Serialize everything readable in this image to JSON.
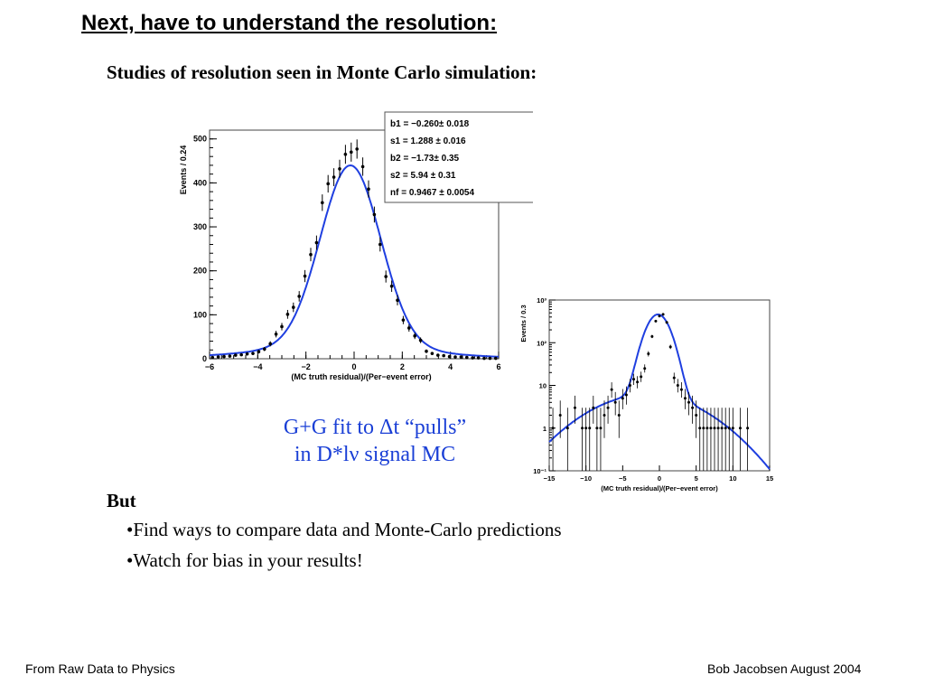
{
  "slide": {
    "title": "Next, have to understand the resolution:",
    "subtitle": "Studies of resolution seen in Monte Carlo simulation:",
    "caption_line1": "G+G fit to Δt “pulls”",
    "caption_line2": "in D*lν signal MC",
    "but_label": "But",
    "bullets": [
      "Find ways to compare data and Monte-Carlo predictions",
      "Watch for bias in your results!"
    ],
    "footer_left": "From Raw Data to Physics",
    "footer_right": "Bob Jacobsen August 2004"
  },
  "chart_data": [
    {
      "type": "scatter",
      "xlabel": "(MC truth residual)/(Per−event error)",
      "ylabel": "Events / 0.24",
      "xlim": [
        -6,
        6
      ],
      "ylim": [
        0,
        520
      ],
      "xticks": [
        -6,
        -4,
        -2,
        0,
        2,
        4,
        6
      ],
      "yticks": [
        0,
        100,
        200,
        300,
        400,
        500
      ],
      "fit_params": [
        "b1 = −0.260± 0.018",
        "s1 = 1.288 ± 0.016",
        "b2 = −1.73± 0.35",
        "s2 = 5.94 ± 0.31",
        "nf = 0.9467 ± 0.0054"
      ],
      "fit_curve_color": "#1f3fe0",
      "x": [
        -5.88,
        -5.64,
        -5.4,
        -5.16,
        -4.92,
        -4.68,
        -4.44,
        -4.2,
        -3.96,
        -3.72,
        -3.48,
        -3.24,
        -3.0,
        -2.76,
        -2.52,
        -2.28,
        -2.04,
        -1.8,
        -1.56,
        -1.32,
        -1.08,
        -0.84,
        -0.6,
        -0.36,
        -0.12,
        0.12,
        0.36,
        0.6,
        0.84,
        1.08,
        1.32,
        1.56,
        1.8,
        2.04,
        2.28,
        2.52,
        2.76,
        3.0,
        3.24,
        3.48,
        3.72,
        3.96,
        4.2,
        4.44,
        4.68,
        4.92,
        5.16,
        5.4,
        5.64,
        5.88
      ],
      "y": [
        3,
        4,
        5,
        6,
        8,
        9,
        11,
        12,
        16,
        22,
        34,
        56,
        73,
        101,
        117,
        142,
        188,
        237,
        264,
        355,
        398,
        413,
        432,
        465,
        470,
        477,
        437,
        386,
        328,
        260,
        187,
        165,
        133,
        88,
        70,
        52,
        42,
        17,
        12,
        8,
        7,
        5,
        4,
        4,
        3,
        2,
        2,
        1,
        1,
        1
      ]
    },
    {
      "type": "scatter",
      "xlabel": "(MC truth residual)/(Per−event error)",
      "ylabel": "Events / 0.3",
      "xlim": [
        -15,
        15
      ],
      "ylim": [
        0.1,
        1000
      ],
      "yscale": "log",
      "xticks": [
        -15,
        -10,
        -5,
        0,
        5,
        10,
        15
      ],
      "yticks": [
        0.1,
        1,
        10,
        100,
        1000
      ],
      "ytick_labels": [
        "10⁻¹",
        "1",
        "10",
        "10²",
        "10³"
      ],
      "fit_curve_color": "#1f3fe0",
      "x": [
        -14.5,
        -13.5,
        -12.5,
        -11.5,
        -10.5,
        -10.0,
        -9.5,
        -9.0,
        -8.5,
        -8.0,
        -7.5,
        -7.0,
        -6.5,
        -6.0,
        -5.5,
        -5.0,
        -4.5,
        -4.0,
        -3.5,
        -3.0,
        -2.5,
        -2.0,
        -1.5,
        -1.0,
        -0.5,
        0.0,
        0.5,
        1.0,
        1.5,
        2.0,
        2.5,
        3.0,
        3.5,
        4.0,
        4.5,
        5.0,
        5.5,
        6.0,
        6.5,
        7.0,
        7.5,
        8.0,
        8.5,
        9.0,
        9.5,
        10.0,
        11.0,
        12.0
      ],
      "y": [
        1,
        2,
        1,
        3,
        1,
        1,
        1,
        3,
        1,
        1,
        2,
        3,
        8,
        4,
        2,
        5,
        6,
        10,
        14,
        12,
        16,
        25,
        55,
        140,
        320,
        420,
        460,
        300,
        80,
        15,
        10,
        8,
        5,
        4,
        3,
        2,
        1,
        1,
        1,
        1,
        1,
        1,
        1,
        1,
        1,
        1,
        1,
        1
      ]
    }
  ]
}
